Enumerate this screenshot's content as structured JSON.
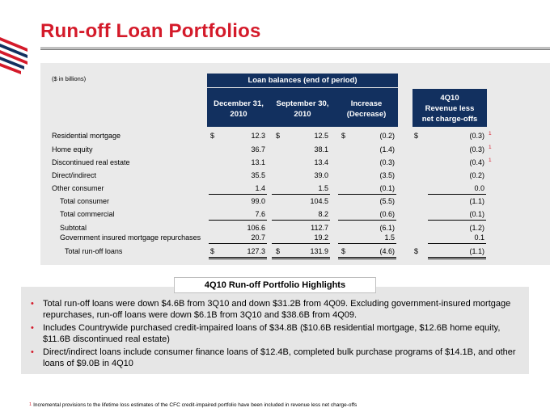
{
  "title": "Run-off Loan Portfolios",
  "units_note": "($ in billions)",
  "group_header": "Loan balances (end of period)",
  "columns": [
    {
      "line1": "December 31,",
      "line2": "2010"
    },
    {
      "line1": "September 30,",
      "line2": "2010"
    },
    {
      "line1": "Increase",
      "line2": "(Decrease)"
    }
  ],
  "revenue_header": {
    "line1": "4Q10",
    "line2": "Revenue less",
    "line3": "net charge-offs"
  },
  "currency_symbol": "$",
  "footnote_marker": "1",
  "rows": [
    {
      "label": "Residential mortgage",
      "dec": "12.3",
      "sep": "12.5",
      "chg": "(0.2)",
      "rev": "(0.3)",
      "note": "1"
    },
    {
      "label": "Home equity",
      "dec": "36.7",
      "sep": "38.1",
      "chg": "(1.4)",
      "rev": "(0.3)",
      "note": "1"
    },
    {
      "label": "Discontinued real estate",
      "dec": "13.1",
      "sep": "13.4",
      "chg": "(0.3)",
      "rev": "(0.4)",
      "note": "1"
    },
    {
      "label": "Direct/indirect",
      "dec": "35.5",
      "sep": "39.0",
      "chg": "(3.5)",
      "rev": "(0.2)",
      "note": ""
    },
    {
      "label": "Other consumer",
      "dec": "1.4",
      "sep": "1.5",
      "chg": "(0.1)",
      "rev": "0.0",
      "note": ""
    },
    {
      "label": "Total consumer",
      "dec": "99.0",
      "sep": "104.5",
      "chg": "(5.5)",
      "rev": "(1.1)",
      "note": ""
    },
    {
      "label": "Total commercial",
      "dec": "7.6",
      "sep": "8.2",
      "chg": "(0.6)",
      "rev": "(0.1)",
      "note": ""
    },
    {
      "label": "Subtotal",
      "dec": "106.6",
      "sep": "112.7",
      "chg": "(6.1)",
      "rev": "(1.2)",
      "note": ""
    },
    {
      "label": "Government insured mortgage repurchases",
      "dec": "20.7",
      "sep": "19.2",
      "chg": "1.5",
      "rev": "0.1",
      "note": ""
    },
    {
      "label": "Total run-off loans",
      "dec": "127.3",
      "sep": "131.9",
      "chg": "(4.6)",
      "rev": "(1.1)",
      "note": ""
    }
  ],
  "highlights_title": "4Q10 Run-off Portfolio Highlights",
  "bullet_glyph": "•",
  "bullets": [
    "Total run-off loans were down $4.6B from 3Q10 and down $31.2B from 4Q09.  Excluding government-insured mortgage repurchases, run-off loans were down $6.1B from 3Q10 and $38.6B from 4Q09.",
    "Includes Countrywide purchased credit-impaired loans of $34.8B ($10.6B residential mortgage, $12.6B home equity, $11.6B discontinued real estate)",
    "Direct/indirect loans include consumer finance loans of $12.4B, completed bulk purchase programs of $14.1B, and other loans of $9.0B in 4Q10"
  ],
  "footnote": "Incremental provisions to the lifetime loss estimates of the CFC credit-impaired portfolio have been included in revenue less net charge-offs",
  "colors": {
    "title_red": "#d41a2a",
    "band_navy": "#12305f",
    "panel_gray": "#eaeaea"
  }
}
